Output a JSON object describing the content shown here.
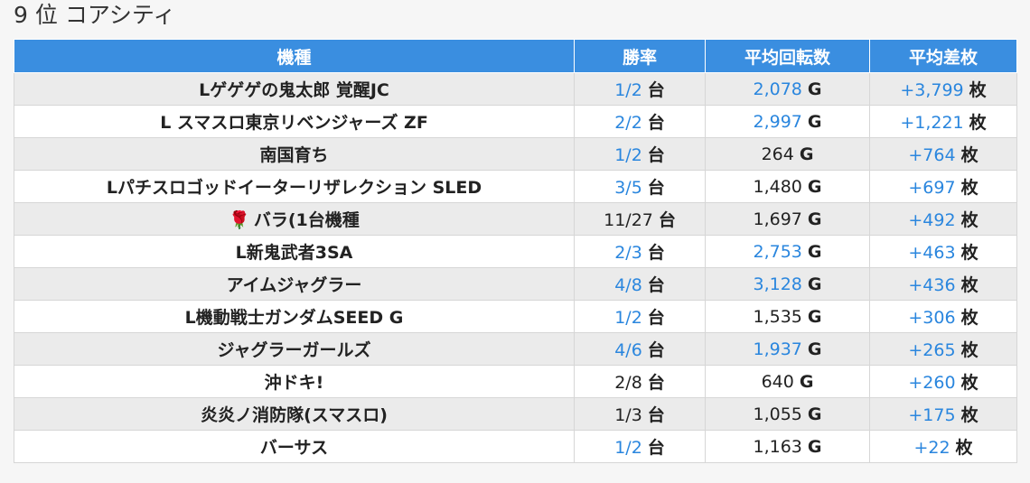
{
  "header": {
    "rank": "9 位",
    "store": "コアシティ"
  },
  "columns": [
    "機種",
    "勝率",
    "平均回転数",
    "平均差枚"
  ],
  "units": {
    "count": "台",
    "games": "G",
    "coins": "枚"
  },
  "colors": {
    "header_bg": "#3a8ee0",
    "link": "#2a86de",
    "row_alt": "#ebebeb"
  },
  "rows": [
    {
      "model": "Lゲゲゲの鬼太郎 覚醒JC",
      "win_rate": "1/2",
      "win_rate_link": true,
      "avg_spins": "2,078",
      "avg_spins_link": true,
      "avg_diff": "+3,799"
    },
    {
      "model": "L スマスロ東京リベンジャーズ ZF",
      "win_rate": "2/2",
      "win_rate_link": true,
      "avg_spins": "2,997",
      "avg_spins_link": true,
      "avg_diff": "+1,221"
    },
    {
      "model": "南国育ち",
      "win_rate": "1/2",
      "win_rate_link": true,
      "avg_spins": "264",
      "avg_spins_link": false,
      "avg_diff": "+764"
    },
    {
      "model": "Lパチスロゴッドイーターリザレクション SLED",
      "win_rate": "3/5",
      "win_rate_link": true,
      "avg_spins": "1,480",
      "avg_spins_link": false,
      "avg_diff": "+697"
    },
    {
      "model": "バラ(1台機種",
      "icon": "rose-icon",
      "win_rate": "11/27",
      "win_rate_link": false,
      "avg_spins": "1,697",
      "avg_spins_link": false,
      "avg_diff": "+492"
    },
    {
      "model": "L新鬼武者3SA",
      "win_rate": "2/3",
      "win_rate_link": true,
      "avg_spins": "2,753",
      "avg_spins_link": true,
      "avg_diff": "+463"
    },
    {
      "model": "アイムジャグラー",
      "win_rate": "4/8",
      "win_rate_link": true,
      "avg_spins": "3,128",
      "avg_spins_link": true,
      "avg_diff": "+436"
    },
    {
      "model": "L機動戦士ガンダムSEED G",
      "win_rate": "1/2",
      "win_rate_link": true,
      "avg_spins": "1,535",
      "avg_spins_link": false,
      "avg_diff": "+306"
    },
    {
      "model": "ジャグラーガールズ",
      "win_rate": "4/6",
      "win_rate_link": true,
      "avg_spins": "1,937",
      "avg_spins_link": true,
      "avg_diff": "+265"
    },
    {
      "model": "沖ドキ!",
      "win_rate": "2/8",
      "win_rate_link": false,
      "avg_spins": "640",
      "avg_spins_link": false,
      "avg_diff": "+260"
    },
    {
      "model": "炎炎ノ消防隊(スマスロ)",
      "win_rate": "1/3",
      "win_rate_link": false,
      "avg_spins": "1,055",
      "avg_spins_link": false,
      "avg_diff": "+175"
    },
    {
      "model": "バーサス",
      "win_rate": "1/2",
      "win_rate_link": true,
      "avg_spins": "1,163",
      "avg_spins_link": false,
      "avg_diff": "+22"
    }
  ]
}
